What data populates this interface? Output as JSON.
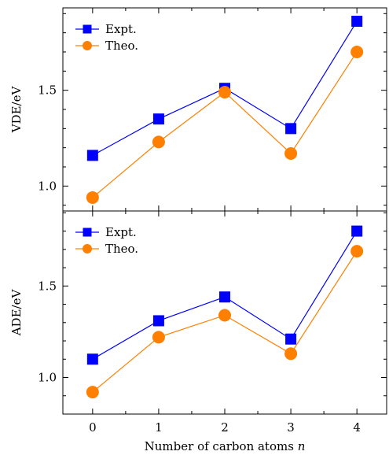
{
  "chart_data": [
    {
      "type": "line",
      "ylabel": "VDE/eV",
      "xlabel": "",
      "x": [
        0,
        1,
        2,
        3,
        4
      ],
      "xlim": [
        -0.45,
        4.45
      ],
      "ylim": [
        0.87,
        1.93
      ],
      "yticks": [
        1.0,
        1.5
      ],
      "ytick_labels": [
        "1.0",
        "1.5"
      ],
      "legend_placement": "top-left",
      "grid": false,
      "series": [
        {
          "name": "Expt.",
          "marker": "square",
          "color": "#0000ff",
          "values": [
            1.16,
            1.35,
            1.51,
            1.3,
            1.86
          ]
        },
        {
          "name": "Theo.",
          "marker": "circle",
          "color": "#ff8000",
          "values": [
            0.94,
            1.23,
            1.49,
            1.17,
            1.7
          ]
        }
      ]
    },
    {
      "type": "line",
      "ylabel": "ADE/eV",
      "xlabel": "Number of carbon atoms n",
      "x": [
        0,
        1,
        2,
        3,
        4
      ],
      "xticks": [
        0,
        1,
        2,
        3,
        4
      ],
      "xtick_labels": [
        "0",
        "1",
        "2",
        "3",
        "4"
      ],
      "xlim": [
        -0.45,
        4.45
      ],
      "ylim": [
        0.8,
        1.91
      ],
      "yticks": [
        1.0,
        1.5
      ],
      "ytick_labels": [
        "1.0",
        "1.5"
      ],
      "legend_placement": "top-left",
      "grid": false,
      "series": [
        {
          "name": "Expt.",
          "marker": "square",
          "color": "#0000ff",
          "values": [
            1.1,
            1.31,
            1.44,
            1.21,
            1.8
          ]
        },
        {
          "name": "Theo.",
          "marker": "circle",
          "color": "#ff8000",
          "values": [
            0.92,
            1.22,
            1.34,
            1.13,
            1.69
          ]
        }
      ]
    }
  ]
}
